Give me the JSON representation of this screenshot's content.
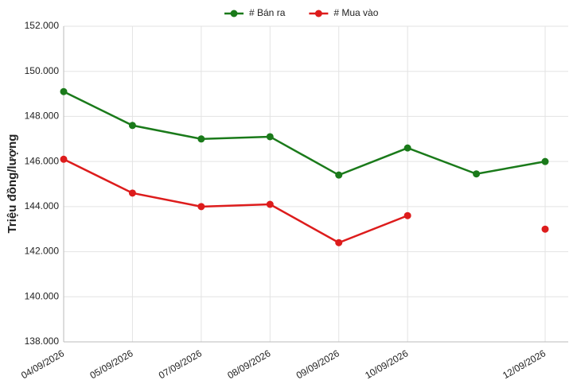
{
  "chart_data": {
    "type": "line",
    "y_label": "Triệu đồng/lượng",
    "categories": [
      "04/09/2026",
      "05/09/2026",
      "07/09/2026",
      "08/09/2026",
      "09/09/2026",
      "10/09/2026",
      null,
      "12/09/2026"
    ],
    "series": [
      {
        "name": "# Bán ra",
        "color": "#1a7a1a",
        "values": [
          149.1,
          147.6,
          147.0,
          147.1,
          145.4,
          146.6,
          145.45,
          146.0
        ]
      },
      {
        "name": "# Mua vào",
        "color": "#dd1c1c",
        "values": [
          146.1,
          144.6,
          144.0,
          144.1,
          142.4,
          143.6,
          null,
          143.0
        ]
      }
    ],
    "ylim": [
      138,
      152
    ],
    "yticks": [
      {
        "value": 138,
        "label": "138.000"
      },
      {
        "value": 140,
        "label": "140.000"
      },
      {
        "value": 142,
        "label": "142.000"
      },
      {
        "value": 144,
        "label": "144.000"
      },
      {
        "value": 146,
        "label": "146.000"
      },
      {
        "value": 148,
        "label": "148.000"
      },
      {
        "value": 150,
        "label": "150.000"
      },
      {
        "value": 152,
        "label": "152.000"
      }
    ],
    "grid": true
  }
}
